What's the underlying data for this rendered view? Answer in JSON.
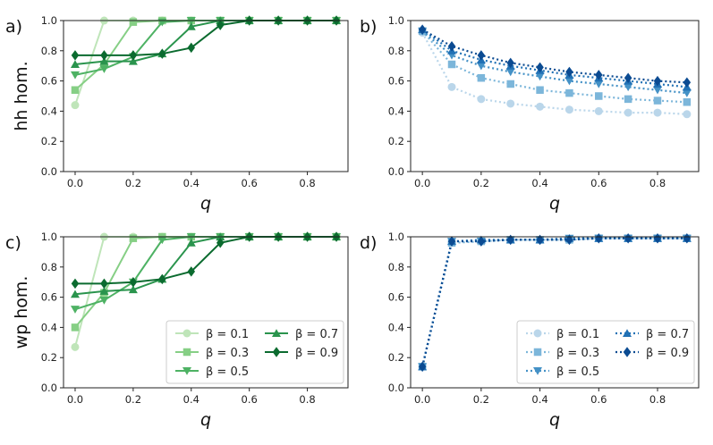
{
  "chart_data": [
    {
      "id": "a",
      "panel_label": "a)",
      "type": "line",
      "style": "solid",
      "ylabel": "hh hom.",
      "xlabel": "q",
      "xlim": [
        -0.04,
        0.94
      ],
      "ylim": [
        0,
        1.0
      ],
      "xticks": [
        "0.0",
        "0.2",
        "0.4",
        "0.6",
        "0.8"
      ],
      "xtick_values": [
        0.0,
        0.2,
        0.4,
        0.6,
        0.8
      ],
      "yticks": [
        "0.0",
        "0.2",
        "0.4",
        "0.6",
        "0.8",
        "1.0"
      ],
      "ytick_values": [
        0.0,
        0.2,
        0.4,
        0.6,
        0.8,
        1.0
      ],
      "x": [
        0.0,
        0.1,
        0.2,
        0.3,
        0.4,
        0.5,
        0.6,
        0.7,
        0.8,
        0.9
      ],
      "series": [
        {
          "name": "β = 0.1",
          "marker": "circle",
          "color": "#bfe5b9",
          "values": [
            0.44,
            1.0,
            1.0,
            1.0,
            1.0,
            1.0,
            1.0,
            1.0,
            1.0,
            1.0
          ]
        },
        {
          "name": "β = 0.3",
          "marker": "square",
          "color": "#86cf85",
          "values": [
            0.54,
            0.71,
            0.99,
            1.0,
            1.0,
            1.0,
            1.0,
            1.0,
            1.0,
            1.0
          ]
        },
        {
          "name": "β = 0.5",
          "marker": "triangle-down",
          "color": "#4eb264",
          "values": [
            0.64,
            0.68,
            0.76,
            0.99,
            1.0,
            1.0,
            1.0,
            1.0,
            1.0,
            1.0
          ]
        },
        {
          "name": "β = 0.7",
          "marker": "triangle-up",
          "color": "#2a944d",
          "values": [
            0.71,
            0.73,
            0.73,
            0.78,
            0.96,
            1.0,
            1.0,
            1.0,
            1.0,
            1.0
          ]
        },
        {
          "name": "β = 0.9",
          "marker": "diamond",
          "color": "#0b6b2f",
          "values": [
            0.77,
            0.77,
            0.77,
            0.78,
            0.82,
            0.97,
            1.0,
            1.0,
            1.0,
            1.0
          ]
        }
      ]
    },
    {
      "id": "b",
      "panel_label": "b)",
      "type": "line",
      "style": "dotted",
      "ylabel": "",
      "xlabel": "q",
      "xlim": [
        -0.04,
        0.94
      ],
      "ylim": [
        0,
        1.0
      ],
      "xticks": [
        "0.0",
        "0.2",
        "0.4",
        "0.6",
        "0.8"
      ],
      "xtick_values": [
        0.0,
        0.2,
        0.4,
        0.6,
        0.8
      ],
      "yticks": [
        "0.0",
        "0.2",
        "0.4",
        "0.6",
        "0.8",
        "1.0"
      ],
      "ytick_values": [
        0.0,
        0.2,
        0.4,
        0.6,
        0.8,
        1.0
      ],
      "x": [
        0.0,
        0.1,
        0.2,
        0.3,
        0.4,
        0.5,
        0.6,
        0.7,
        0.8,
        0.9
      ],
      "series": [
        {
          "name": "β = 0.1",
          "marker": "circle",
          "color": "#bad6ea",
          "values": [
            0.92,
            0.56,
            0.48,
            0.45,
            0.43,
            0.41,
            0.4,
            0.39,
            0.39,
            0.38
          ]
        },
        {
          "name": "β = 0.3",
          "marker": "square",
          "color": "#7cb6da",
          "values": [
            0.93,
            0.71,
            0.62,
            0.58,
            0.54,
            0.52,
            0.5,
            0.48,
            0.47,
            0.46
          ]
        },
        {
          "name": "β = 0.5",
          "marker": "triangle-down",
          "color": "#4491c6",
          "values": [
            0.93,
            0.77,
            0.7,
            0.66,
            0.63,
            0.6,
            0.58,
            0.56,
            0.54,
            0.52
          ]
        },
        {
          "name": "β = 0.7",
          "marker": "triangle-up",
          "color": "#2171b5",
          "values": [
            0.94,
            0.8,
            0.74,
            0.7,
            0.67,
            0.64,
            0.62,
            0.6,
            0.58,
            0.56
          ]
        },
        {
          "name": "β = 0.9",
          "marker": "diamond",
          "color": "#0b4b92",
          "values": [
            0.94,
            0.83,
            0.77,
            0.72,
            0.69,
            0.66,
            0.64,
            0.62,
            0.6,
            0.59
          ]
        }
      ]
    },
    {
      "id": "c",
      "panel_label": "c)",
      "type": "line",
      "style": "solid",
      "ylabel": "wp hom.",
      "xlabel": "q",
      "xlim": [
        -0.04,
        0.94
      ],
      "ylim": [
        0,
        1.0
      ],
      "xticks": [
        "0.0",
        "0.2",
        "0.4",
        "0.6",
        "0.8"
      ],
      "xtick_values": [
        0.0,
        0.2,
        0.4,
        0.6,
        0.8
      ],
      "yticks": [
        "0.0",
        "0.2",
        "0.4",
        "0.6",
        "0.8",
        "1.0"
      ],
      "ytick_values": [
        0.0,
        0.2,
        0.4,
        0.6,
        0.8,
        1.0
      ],
      "x": [
        0.0,
        0.1,
        0.2,
        0.3,
        0.4,
        0.5,
        0.6,
        0.7,
        0.8,
        0.9
      ],
      "series": [
        {
          "name": "β = 0.1",
          "marker": "circle",
          "color": "#bfe5b9",
          "values": [
            0.27,
            1.0,
            1.0,
            1.0,
            1.0,
            1.0,
            1.0,
            1.0,
            1.0,
            1.0
          ]
        },
        {
          "name": "β = 0.3",
          "marker": "square",
          "color": "#86cf85",
          "values": [
            0.4,
            0.63,
            0.99,
            1.0,
            1.0,
            1.0,
            1.0,
            1.0,
            1.0,
            1.0
          ]
        },
        {
          "name": "β = 0.5",
          "marker": "triangle-down",
          "color": "#4eb264",
          "values": [
            0.52,
            0.58,
            0.7,
            0.98,
            1.0,
            1.0,
            1.0,
            1.0,
            1.0,
            1.0
          ]
        },
        {
          "name": "β = 0.7",
          "marker": "triangle-up",
          "color": "#2a944d",
          "values": [
            0.62,
            0.64,
            0.65,
            0.72,
            0.96,
            1.0,
            1.0,
            1.0,
            1.0,
            1.0
          ]
        },
        {
          "name": "β = 0.9",
          "marker": "diamond",
          "color": "#0b6b2f",
          "values": [
            0.69,
            0.69,
            0.7,
            0.72,
            0.77,
            0.96,
            1.0,
            1.0,
            1.0,
            1.0
          ]
        }
      ],
      "legend": {
        "placement": "lower-right",
        "columns": 2,
        "entries": [
          "β = 0.1",
          "β = 0.3",
          "β = 0.5",
          "β = 0.7",
          "β = 0.9"
        ]
      }
    },
    {
      "id": "d",
      "panel_label": "d)",
      "type": "line",
      "style": "dotted",
      "ylabel": "",
      "xlabel": "q",
      "xlim": [
        -0.04,
        0.94
      ],
      "ylim": [
        0,
        1.0
      ],
      "xticks": [
        "0.0",
        "0.2",
        "0.4",
        "0.6",
        "0.8"
      ],
      "xtick_values": [
        0.0,
        0.2,
        0.4,
        0.6,
        0.8
      ],
      "yticks": [
        "0.0",
        "0.2",
        "0.4",
        "0.6",
        "0.8",
        "1.0"
      ],
      "ytick_values": [
        0.0,
        0.2,
        0.4,
        0.6,
        0.8,
        1.0
      ],
      "x": [
        0.0,
        0.1,
        0.2,
        0.3,
        0.4,
        0.5,
        0.6,
        0.7,
        0.8,
        0.9
      ],
      "series": [
        {
          "name": "β = 0.1",
          "marker": "circle",
          "color": "#bad6ea",
          "values": [
            0.14,
            0.96,
            0.97,
            0.98,
            0.98,
            0.98,
            0.99,
            0.99,
            0.99,
            0.99
          ]
        },
        {
          "name": "β = 0.3",
          "marker": "square",
          "color": "#7cb6da",
          "values": [
            0.14,
            0.96,
            0.97,
            0.98,
            0.98,
            0.98,
            0.99,
            0.99,
            0.99,
            0.99
          ]
        },
        {
          "name": "β = 0.5",
          "marker": "triangle-down",
          "color": "#4491c6",
          "values": [
            0.14,
            0.97,
            0.97,
            0.98,
            0.98,
            0.99,
            0.99,
            0.99,
            0.99,
            0.99
          ]
        },
        {
          "name": "β = 0.7",
          "marker": "triangle-up",
          "color": "#2171b5",
          "values": [
            0.14,
            0.97,
            0.98,
            0.98,
            0.98,
            0.99,
            0.99,
            0.99,
            0.99,
            0.99
          ]
        },
        {
          "name": "β = 0.9",
          "marker": "diamond",
          "color": "#0b4b92",
          "values": [
            0.14,
            0.97,
            0.97,
            0.98,
            0.98,
            0.98,
            0.99,
            0.99,
            0.99,
            0.99
          ]
        }
      ],
      "legend": {
        "placement": "lower-right",
        "columns": 2,
        "entries": [
          "β = 0.1",
          "β = 0.3",
          "β = 0.5",
          "β = 0.7",
          "β = 0.9"
        ]
      }
    }
  ]
}
